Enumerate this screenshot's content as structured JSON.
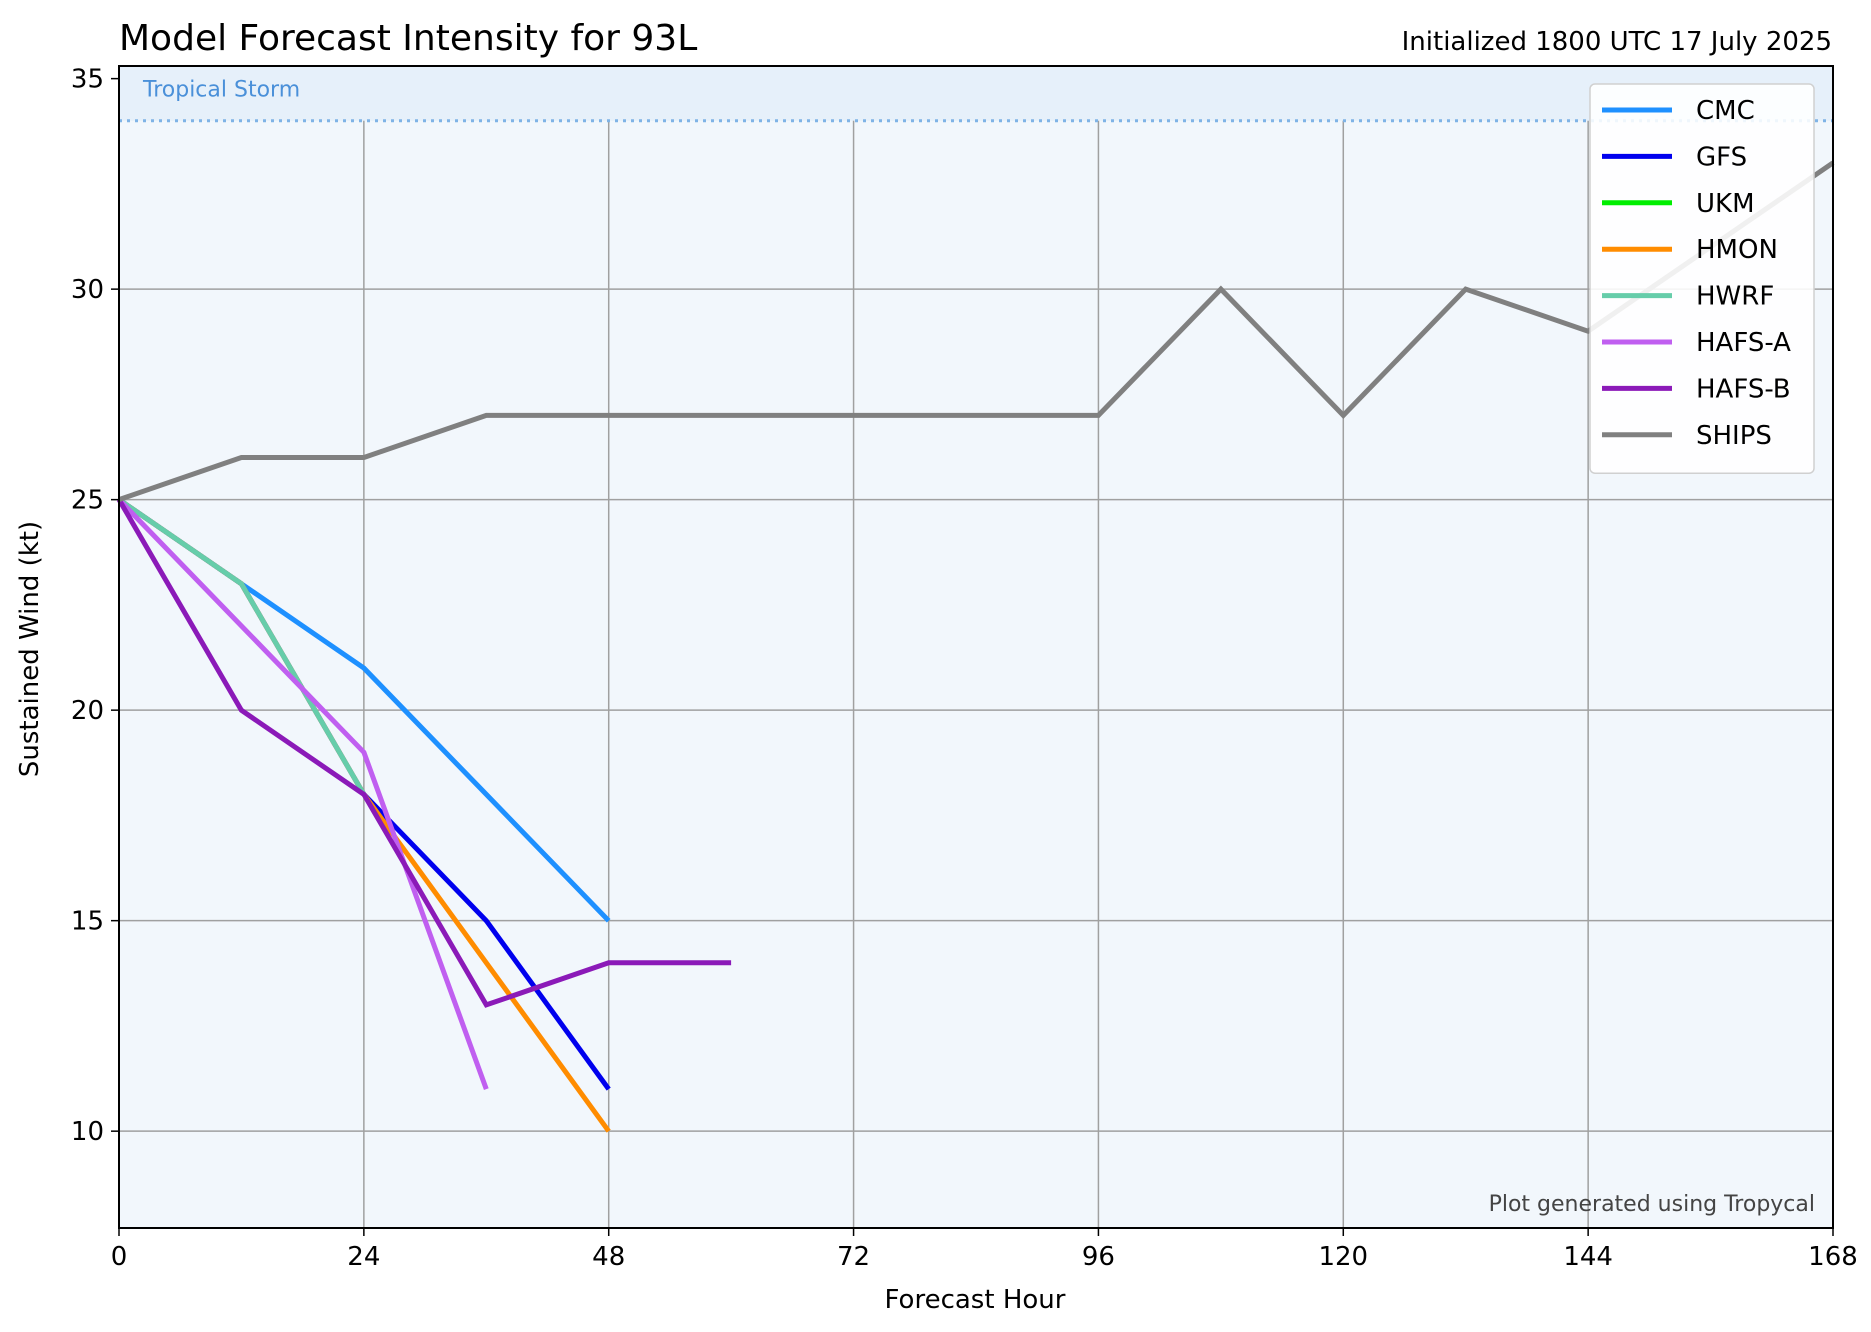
{
  "chart_data": {
    "type": "line",
    "title": "Model Forecast Intensity for 93L",
    "subtitle": "Initialized 1800 UTC 17 July 2025",
    "xlabel": "Forecast Hour",
    "ylabel": "Sustained Wind (kt)",
    "xlim": [
      0,
      168
    ],
    "ylim": [
      7.7,
      35.3
    ],
    "xticks": [
      0,
      24,
      48,
      72,
      96,
      120,
      144,
      168
    ],
    "yticks": [
      10,
      15,
      20,
      25,
      30,
      35
    ],
    "grid": true,
    "legend_position": "top-right",
    "threshold": {
      "label": "Tropical Storm",
      "value": 34,
      "color": "#7fb3e6",
      "band_color": "#e6f0fa"
    },
    "background_color": "#f2f7fc",
    "series": [
      {
        "name": "CMC",
        "color": "#1e90ff",
        "x": [
          0,
          12,
          24,
          36,
          48
        ],
        "y": [
          25,
          23,
          21,
          18,
          15
        ]
      },
      {
        "name": "GFS",
        "color": "#0000ee",
        "x": [
          0,
          12,
          24,
          36,
          48
        ],
        "y": [
          25,
          23,
          18,
          15,
          11
        ]
      },
      {
        "name": "UKM",
        "color": "#00ee00",
        "x": [],
        "y": []
      },
      {
        "name": "HMON",
        "color": "#ff8c00",
        "x": [
          0,
          12,
          24,
          36,
          48
        ],
        "y": [
          25,
          23,
          18,
          14,
          10
        ]
      },
      {
        "name": "HWRF",
        "color": "#66cdaa",
        "x": [
          0,
          12,
          24
        ],
        "y": [
          25,
          23,
          18
        ]
      },
      {
        "name": "HAFS-A",
        "color": "#c05ff0",
        "x": [
          0,
          24,
          36
        ],
        "y": [
          25,
          19,
          11
        ]
      },
      {
        "name": "HAFS-B",
        "color": "#8b1ab8",
        "x": [
          0,
          12,
          24,
          36,
          48,
          60
        ],
        "y": [
          25,
          20,
          18,
          13,
          14,
          14
        ]
      },
      {
        "name": "SHIPS",
        "color": "#808080",
        "x": [
          0,
          12,
          24,
          36,
          48,
          60,
          72,
          84,
          96,
          108,
          120,
          132,
          144,
          156,
          168
        ],
        "y": [
          25,
          26,
          26,
          27,
          27,
          27,
          27,
          27,
          27,
          30,
          27,
          30,
          29,
          31,
          33
        ]
      }
    ],
    "credit": "Plot generated using Tropycal"
  }
}
